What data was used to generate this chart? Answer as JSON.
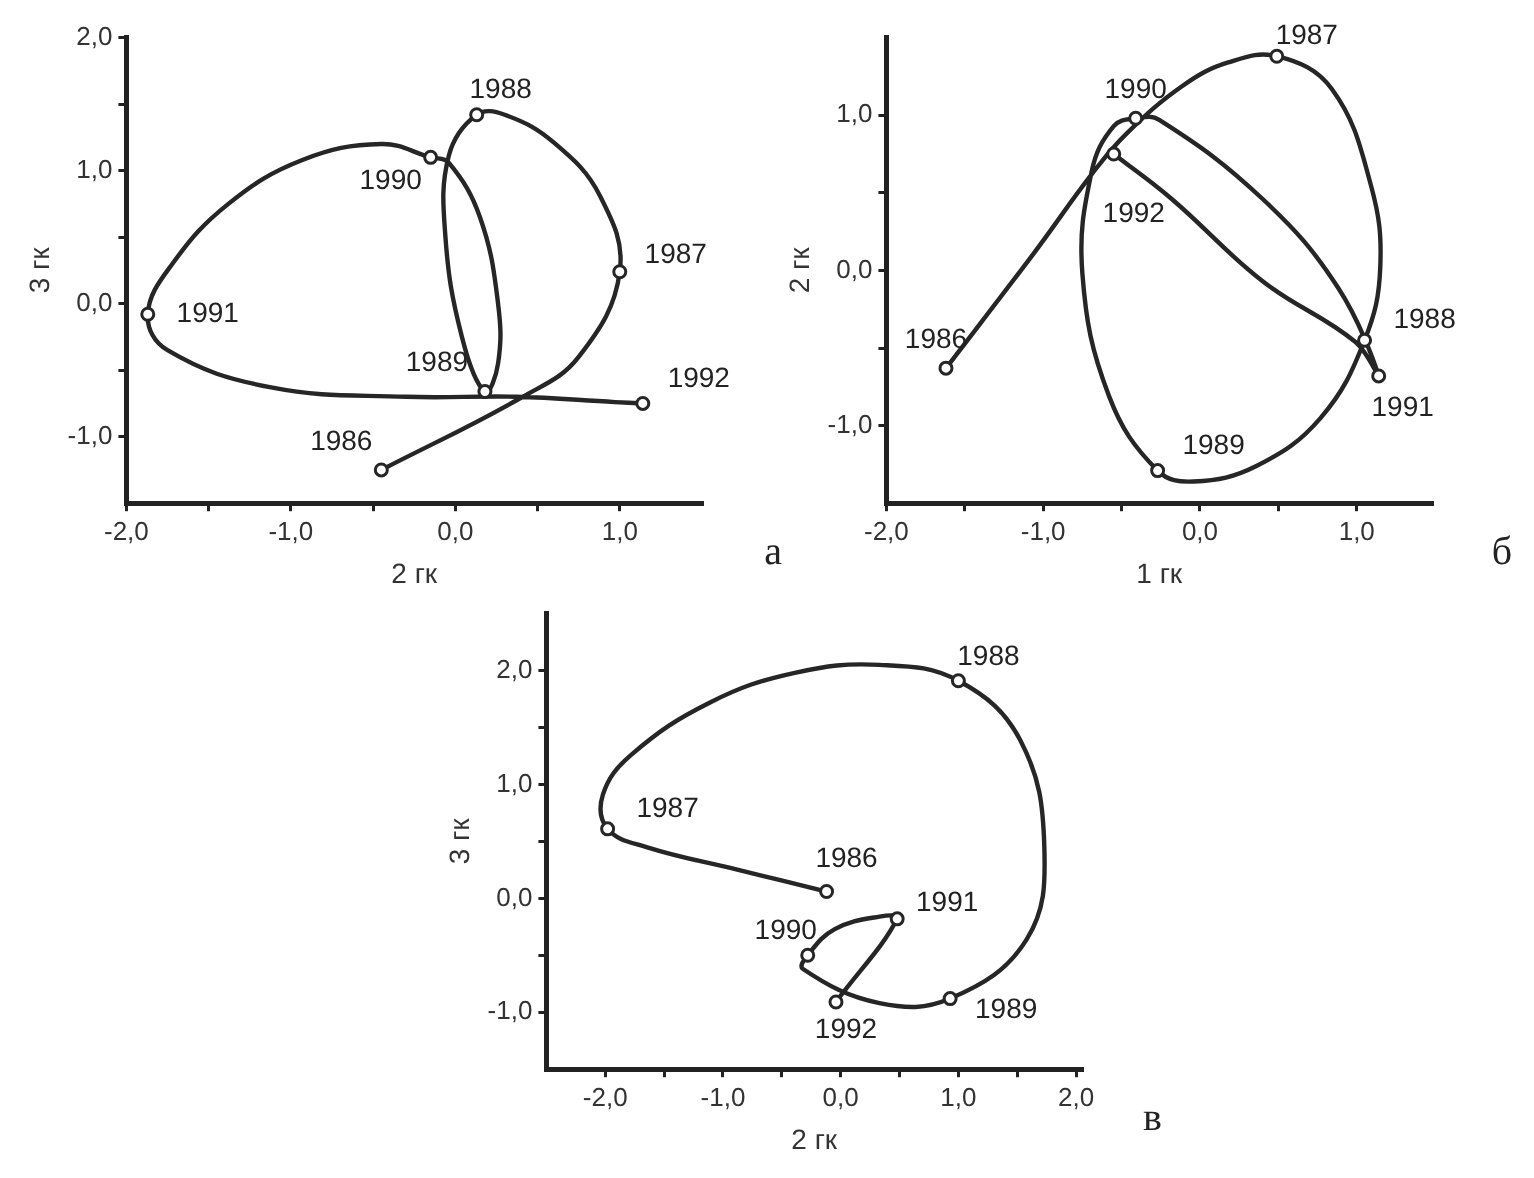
{
  "chart_data": [
    {
      "type": "line",
      "xlabel": "2 гк",
      "ylabel": "3 гк",
      "xlim": [
        -2.0,
        1.5
      ],
      "ylim": [
        -1.5,
        2.0
      ],
      "grid": false,
      "legend": false,
      "xticks": [
        {
          "value": -2,
          "label": "-2,0"
        },
        {
          "value": -1.5,
          "label": null
        },
        {
          "value": -1,
          "label": "-1,0"
        },
        {
          "value": -0.5,
          "label": null
        },
        {
          "value": 0,
          "label": "0,0"
        },
        {
          "value": 0.5,
          "label": null
        },
        {
          "value": 1,
          "label": "1,0"
        }
      ],
      "yticks": [
        {
          "value": -1,
          "label": "-1,0"
        },
        {
          "value": -0.5,
          "label": null
        },
        {
          "value": 0,
          "label": "0,0"
        },
        {
          "value": 0.5,
          "label": null
        },
        {
          "value": 1,
          "label": "1,0"
        },
        {
          "value": 1.5,
          "label": null
        },
        {
          "value": 2,
          "label": "2,0"
        }
      ],
      "series": [
        {
          "type": "line",
          "color": "#262626",
          "marker": "none",
          "line_style": "solid",
          "x": [
            -0.45,
            0.41,
            0.75,
            1.0,
            0.88,
            0.6,
            0.3,
            0.13,
            -0.04,
            -0.06,
            0.04,
            0.18,
            0.26,
            0.26,
            0.15,
            -0.04,
            -0.15,
            -0.45,
            -0.93,
            -1.38,
            -1.72,
            -1.87,
            -1.75,
            -1.12,
            -0.3,
            0.37,
            0.97,
            1.14
          ],
          "values": [
            -1.25,
            -0.7,
            -0.4,
            0.24,
            0.81,
            1.21,
            1.42,
            1.42,
            1.11,
            0.5,
            -0.25,
            -0.66,
            -0.45,
            0.0,
            0.65,
            1.06,
            1.1,
            1.2,
            1.08,
            0.75,
            0.3,
            -0.08,
            -0.35,
            -0.63,
            -0.7,
            -0.7,
            -0.74,
            -0.75
          ]
        },
        {
          "type": "scatter",
          "color": "#262626",
          "marker": "circle",
          "x": [
            -0.45,
            1.0,
            0.13,
            0.18,
            -0.15,
            -1.87,
            1.14
          ],
          "values": [
            -1.25,
            0.24,
            1.42,
            -0.66,
            1.1,
            -0.08,
            -0.75
          ]
        }
      ],
      "annotations": [
        {
          "text": "1986",
          "x": -0.45,
          "y": -1.25
        },
        {
          "text": "1987",
          "x": 1.0,
          "y": 0.24
        },
        {
          "text": "1988",
          "x": 0.13,
          "y": 1.42
        },
        {
          "text": "1989",
          "x": 0.18,
          "y": -0.66
        },
        {
          "text": "1990",
          "x": -0.15,
          "y": 1.1
        },
        {
          "text": "1991",
          "x": -1.87,
          "y": -0.08
        },
        {
          "text": "1992",
          "x": 1.14,
          "y": -0.75
        },
        "а"
      ]
    },
    {
      "type": "line",
      "xlabel": "1 гк",
      "ylabel": "2 гк",
      "xlim": [
        -2.0,
        1.48
      ],
      "ylim": [
        -1.5,
        1.5
      ],
      "grid": false,
      "legend": false,
      "xticks": [
        {
          "value": -2,
          "label": "-2,0"
        },
        {
          "value": -1.5,
          "label": null
        },
        {
          "value": -1,
          "label": "-1,0"
        },
        {
          "value": -0.5,
          "label": null
        },
        {
          "value": 0,
          "label": "0,0"
        },
        {
          "value": 0.5,
          "label": null
        },
        {
          "value": 1,
          "label": "1,0"
        }
      ],
      "yticks": [
        {
          "value": -1,
          "label": "-1,0"
        },
        {
          "value": -0.5,
          "label": null
        },
        {
          "value": 0,
          "label": "0,0"
        },
        {
          "value": 0.5,
          "label": null
        },
        {
          "value": 1,
          "label": "1,0"
        }
      ],
      "series": [
        {
          "type": "line",
          "color": "#262626",
          "marker": "none",
          "line_style": "solid",
          "x": [
            -1.62,
            -1.06,
            -0.69,
            -0.47,
            -0.11,
            0.18,
            0.49,
            0.84,
            1.09,
            1.15,
            1.05,
            0.77,
            0.36,
            -0.04,
            -0.27,
            -0.58,
            -0.75,
            -0.69,
            -0.55,
            -0.41,
            -0.26,
            0.4,
            0.88,
            1.14,
            0.99,
            0.4,
            -0.18,
            -0.55
          ],
          "values": [
            -0.63,
            0.11,
            0.62,
            0.88,
            1.19,
            1.34,
            1.38,
            1.17,
            0.55,
            0.02,
            -0.45,
            -0.95,
            -1.26,
            -1.36,
            -1.29,
            -0.81,
            -0.02,
            0.64,
            0.93,
            0.98,
            0.97,
            0.46,
            -0.11,
            -0.68,
            -0.46,
            -0.07,
            0.46,
            0.75
          ]
        },
        {
          "type": "scatter",
          "color": "#262626",
          "marker": "circle",
          "x": [
            -1.62,
            0.49,
            1.05,
            -0.27,
            -0.41,
            1.14,
            -0.55
          ],
          "values": [
            -0.63,
            1.38,
            -0.45,
            -1.29,
            0.98,
            -0.68,
            0.75
          ]
        }
      ],
      "annotations": [
        {
          "text": "1986",
          "x": -1.62,
          "y": -0.63
        },
        {
          "text": "1987",
          "x": 0.49,
          "y": 1.38
        },
        {
          "text": "1988",
          "x": 1.05,
          "y": -0.45
        },
        {
          "text": "1989",
          "x": -0.27,
          "y": -1.29
        },
        {
          "text": "1990",
          "x": -0.41,
          "y": 0.98
        },
        {
          "text": "1991",
          "x": 1.14,
          "y": -0.68
        },
        {
          "text": "1992",
          "x": -0.55,
          "y": 0.75
        },
        "б"
      ]
    },
    {
      "type": "line",
      "xlabel": "2 гк",
      "ylabel": "3 гк",
      "xlim": [
        -2.5,
        2.05
      ],
      "ylim": [
        -1.5,
        2.5
      ],
      "grid": false,
      "legend": false,
      "xticks": [
        {
          "value": -2,
          "label": "-2,0"
        },
        {
          "value": -1.5,
          "label": null
        },
        {
          "value": -1,
          "label": "-1,0"
        },
        {
          "value": -0.5,
          "label": null
        },
        {
          "value": 0,
          "label": "0,0"
        },
        {
          "value": 0.5,
          "label": null
        },
        {
          "value": 1,
          "label": "1,0"
        },
        {
          "value": 1.5,
          "label": null
        },
        {
          "value": 2,
          "label": "2,0"
        }
      ],
      "yticks": [
        {
          "value": -1,
          "label": "-1,0"
        },
        {
          "value": -0.5,
          "label": null
        },
        {
          "value": 0,
          "label": "0,0"
        },
        {
          "value": 0.5,
          "label": null
        },
        {
          "value": 1,
          "label": "1,0"
        },
        {
          "value": 1.5,
          "label": null
        },
        {
          "value": 2,
          "label": "2,0"
        }
      ],
      "series": [
        {
          "type": "line",
          "color": "#262626",
          "marker": "none",
          "line_style": "solid",
          "x": [
            -0.12,
            -0.87,
            -1.65,
            -1.98,
            -2.02,
            -1.78,
            -1.11,
            -0.39,
            0.33,
            1.0,
            1.53,
            1.73,
            1.58,
            0.93,
            0.33,
            -0.32,
            -0.28,
            -0.05,
            0.33,
            0.48,
            -0.04
          ],
          "values": [
            0.06,
            0.25,
            0.45,
            0.61,
            0.91,
            1.26,
            1.72,
            1.98,
            2.05,
            1.91,
            1.38,
            0.45,
            -0.36,
            -0.88,
            -0.92,
            -0.62,
            -0.5,
            -0.27,
            -0.16,
            -0.18,
            -0.91
          ]
        },
        {
          "type": "scatter",
          "color": "#262626",
          "marker": "circle",
          "x": [
            -0.12,
            -1.98,
            1.0,
            0.93,
            -0.28,
            0.48,
            -0.04
          ],
          "values": [
            0.06,
            0.61,
            1.91,
            -0.88,
            -0.5,
            -0.18,
            -0.91
          ]
        }
      ],
      "annotations": [
        {
          "text": "1986",
          "x": -0.12,
          "y": 0.06
        },
        {
          "text": "1987",
          "x": -1.98,
          "y": 0.61
        },
        {
          "text": "1988",
          "x": 1.0,
          "y": 1.91
        },
        {
          "text": "1989",
          "x": 0.93,
          "y": -0.88
        },
        {
          "text": "1990",
          "x": -0.28,
          "y": -0.5
        },
        {
          "text": "1991",
          "x": 0.48,
          "y": -0.18
        },
        {
          "text": "1992",
          "x": -0.04,
          "y": -0.91
        },
        "в"
      ]
    }
  ]
}
